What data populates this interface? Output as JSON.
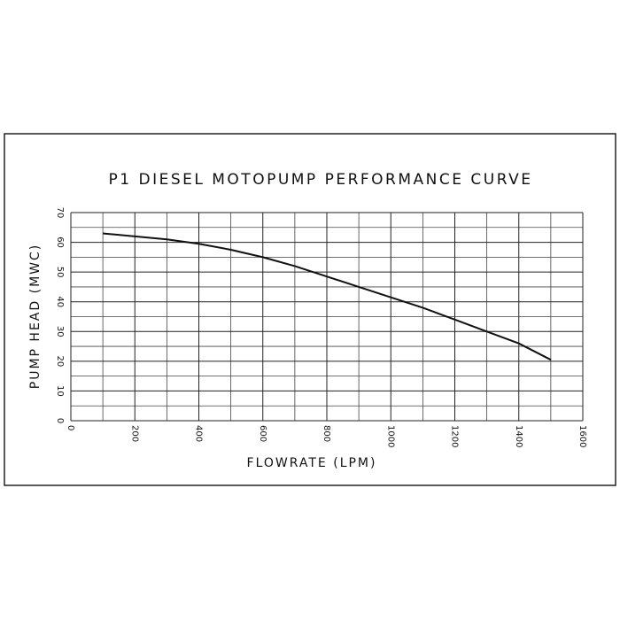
{
  "chart_data": {
    "type": "line",
    "title": "P1 DIESEL MOTOPUMP PERFORMANCE CURVE",
    "x_label": "FLOWRATE (LPM)",
    "y_label": "PUMP HEAD (MWC)",
    "x": [
      100,
      200,
      300,
      400,
      500,
      600,
      700,
      800,
      900,
      1000,
      1100,
      1200,
      1300,
      1400,
      1500
    ],
    "series": [
      {
        "color": "#111111",
        "values": [
          63,
          62,
          61,
          59.5,
          57.5,
          55,
          52,
          48.5,
          45,
          41.5,
          38,
          34,
          30,
          26,
          20.5
        ]
      }
    ],
    "xlim": [
      0,
      1600
    ],
    "xticks": [
      0,
      200,
      400,
      600,
      800,
      1000,
      1200,
      1400,
      1600
    ],
    "ylim": [
      0,
      70
    ],
    "yticks": [
      0,
      10,
      20,
      30,
      40,
      50,
      60,
      70
    ],
    "grid": true
  }
}
